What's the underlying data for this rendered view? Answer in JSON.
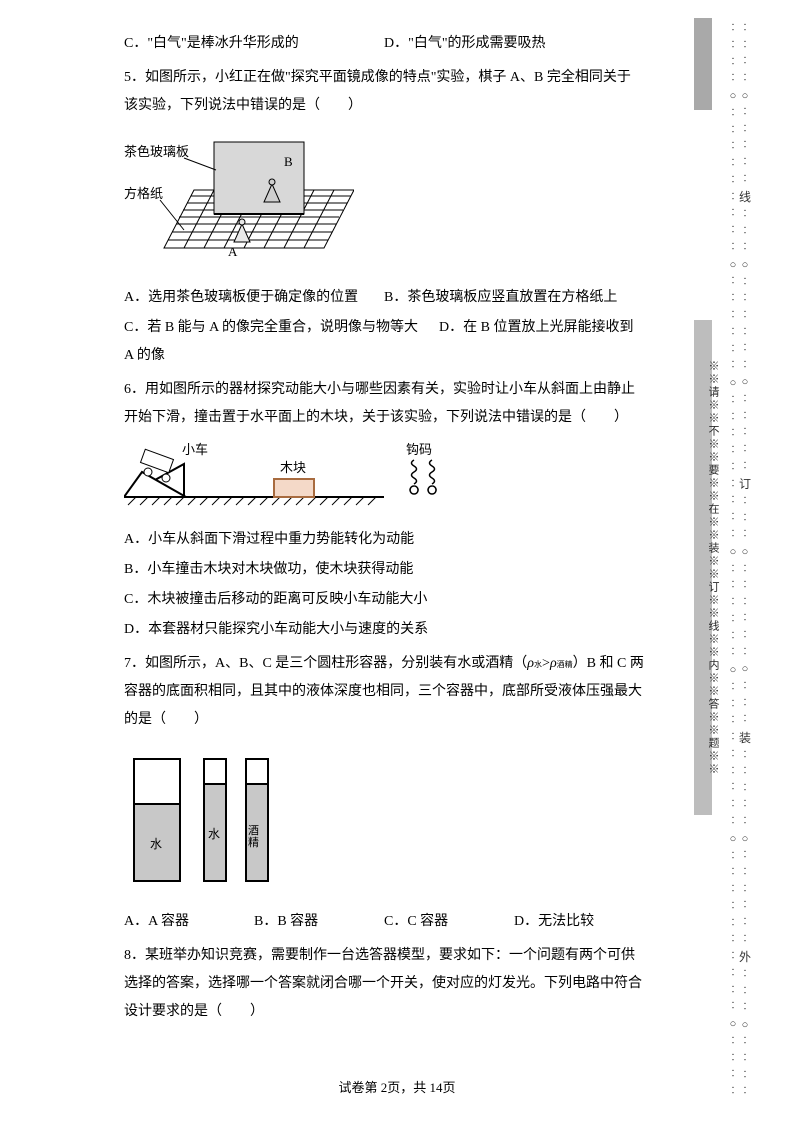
{
  "footer": {
    "text": "试卷第 2页，共 14页"
  },
  "margin": {
    "vertical_text": "※※请※※不※※要※※在※※装※※订※※线※※内※※答※※题※※",
    "outer_char_1": "线",
    "outer_char_2": "订",
    "outer_char_3": "装",
    "outer_char_4": "外"
  },
  "q4": {
    "optC": "C．\"白气\"是棒冰升华形成的",
    "optD": "D．\"白气\"的形成需要吸热"
  },
  "q5": {
    "stem": "5．如图所示，小红正在做\"探究平面镜成像的特点\"实验，棋子 A、B 完全相同关于该实验，下列说法中错误的是（　　）",
    "labels": {
      "board": "茶色玻璃板",
      "paper": "方格纸",
      "A": "A",
      "B": "B"
    },
    "optA": "A．选用茶色玻璃板便于确定像的位置",
    "optB": "B．茶色玻璃板应竖直放置在方格纸上",
    "optC": "C．若 B 能与 A 的像完全重合，说明像与物等大",
    "optD": "D．在 B 位置放上光屏能接收到 A 的像"
  },
  "q6": {
    "stem": "6．用如图所示的器材探究动能大小与哪些因素有关，实验时让小车从斜面上由静止开始下滑，撞击置于水平面上的木块，关于该实验，下列说法中错误的是（　　）",
    "labels": {
      "car": "小车",
      "block": "木块",
      "hook": "钩码"
    },
    "optA": "A．小车从斜面下滑过程中重力势能转化为动能",
    "optB": "B．小车撞击木块对木块做功，使木块获得动能",
    "optC": "C．木块被撞击后移动的距离可反映小车动能大小",
    "optD": "D．本套器材只能探究小车动能大小与速度的关系"
  },
  "q7": {
    "stem_a": "7．如图所示，A、B、C 是三个圆柱形容器，分别装有水或酒精（",
    "stem_rho": "ρ",
    "stem_sub1": "水",
    "stem_gt": ">",
    "stem_sub2": "酒精",
    "stem_b": "）B 和 C 两容器的底面积相同，且其中的液体深度也相同，三个容器中，底部所受液体压强最大的是（　　）",
    "labels": {
      "a": "水",
      "b": "水",
      "c": "酒精"
    },
    "optA": "A．A 容器",
    "optB": "B．B 容器",
    "optC": "C．C 容器",
    "optD": "D．无法比较"
  },
  "q8": {
    "stem": "8．某班举办知识竞赛，需要制作一台选答器模型，要求如下：一个问题有两个可供选择的答案，选择哪一个答案就闭合哪一个开关，使对应的灯发光。下列电路中符合设计要求的是（　　）"
  },
  "colors": {
    "text": "#000000",
    "gray_fill": "#bdbdbd",
    "dark_gray": "#8a8a8a",
    "block_fill": "#f4d9c8",
    "block_border": "#a86b3f",
    "liquid_fill": "#c2c2c2"
  }
}
